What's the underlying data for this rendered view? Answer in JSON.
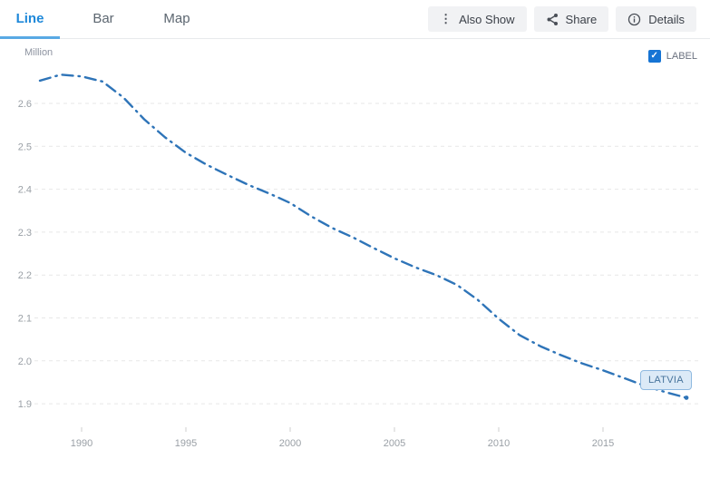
{
  "tabs": [
    {
      "label": "Line",
      "active": true
    },
    {
      "label": "Bar",
      "active": false
    },
    {
      "label": "Map",
      "active": false
    }
  ],
  "toolbar": {
    "also_show_label": "Also Show",
    "share_label": "Share",
    "details_label": "Details"
  },
  "legend": {
    "label_checkbox": "LABEL",
    "checked": true
  },
  "chart_data": {
    "type": "line",
    "unit": "Million",
    "line_color": "#2e74b8",
    "line_style": "dash-dot",
    "grid": true,
    "legend_position": "end-of-line",
    "x_ticks": [
      "1990",
      "1995",
      "2000",
      "2005",
      "2010",
      "2015"
    ],
    "y_ticks": [
      "2.6",
      "2.5",
      "2.4",
      "2.3",
      "2.2",
      "2.1",
      "2.0",
      "1.9"
    ],
    "ylim": [
      1.9,
      2.6
    ],
    "xlim": [
      1988,
      2019
    ],
    "series": [
      {
        "name": "LATVIA",
        "x": [
          1988,
          1989,
          1990,
          1991,
          1992,
          1993,
          1994,
          1995,
          1996,
          1997,
          1998,
          1999,
          2000,
          2001,
          2002,
          2003,
          2004,
          2005,
          2006,
          2007,
          2008,
          2009,
          2010,
          2011,
          2012,
          2013,
          2014,
          2015,
          2016,
          2017,
          2018,
          2019
        ],
        "values": [
          2.653,
          2.667,
          2.663,
          2.651,
          2.614,
          2.563,
          2.521,
          2.485,
          2.457,
          2.433,
          2.41,
          2.39,
          2.368,
          2.337,
          2.31,
          2.288,
          2.263,
          2.239,
          2.218,
          2.2,
          2.177,
          2.142,
          2.098,
          2.06,
          2.034,
          2.013,
          1.994,
          1.978,
          1.96,
          1.942,
          1.927,
          1.914
        ]
      }
    ]
  }
}
